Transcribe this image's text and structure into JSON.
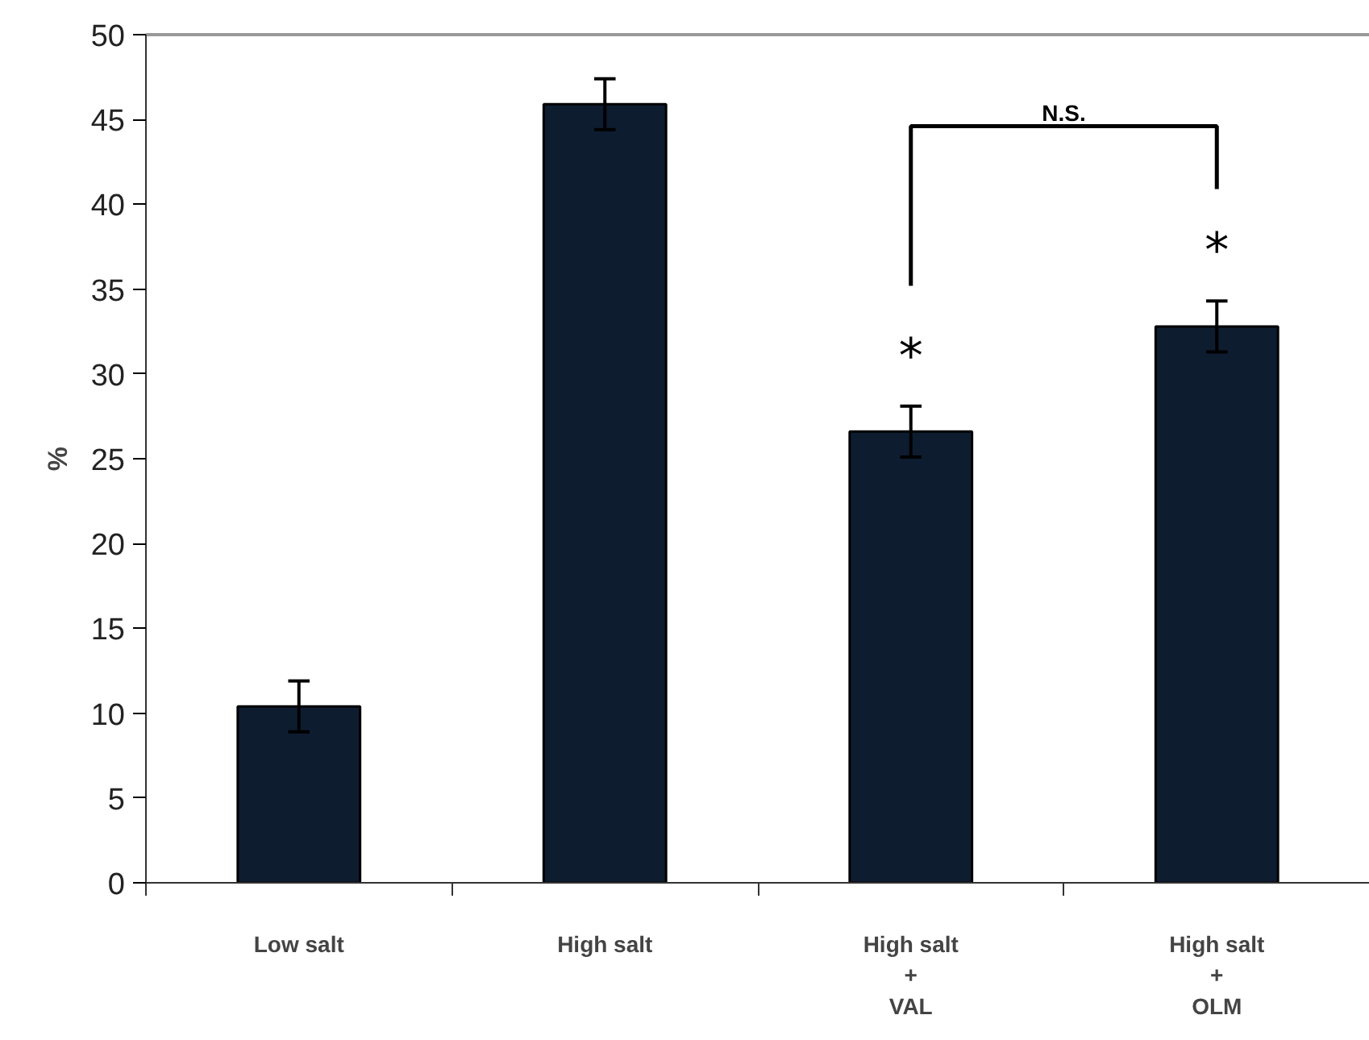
{
  "chart_data": {
    "type": "bar",
    "ylabel": "%",
    "categories": [
      "Low salt",
      "High salt",
      "High salt\n+\nVAL",
      "High salt\n+\nOLM"
    ],
    "values": [
      10.4,
      45.9,
      26.6,
      32.8
    ],
    "errors": [
      1.5,
      1.5,
      1.5,
      1.5
    ],
    "color": "#0e1c30",
    "ylim": [
      0,
      50
    ],
    "yticks": [
      0,
      5,
      10,
      15,
      20,
      25,
      30,
      35,
      40,
      45,
      50
    ],
    "grid": false,
    "annotations": [
      "*",
      "*",
      "N.S."
    ]
  }
}
